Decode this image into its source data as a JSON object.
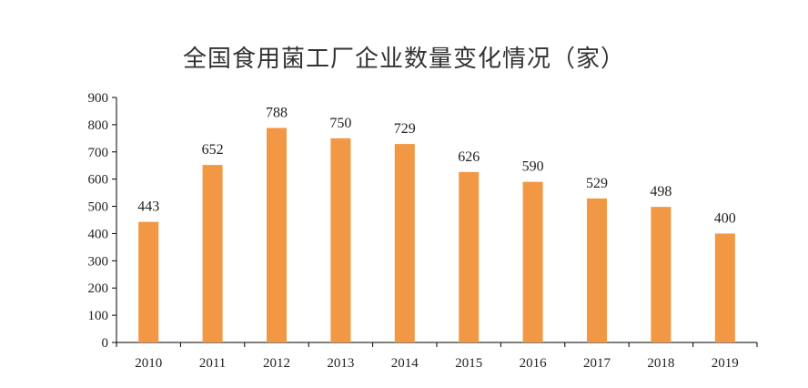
{
  "colors": {
    "bar": "#F29743",
    "axis": "#000000",
    "text": "#222222"
  },
  "chart_data": {
    "type": "bar",
    "title": "全国食用菌工厂企业数量变化情况（家）",
    "categories": [
      "2010",
      "2011",
      "2012",
      "2013",
      "2014",
      "2015",
      "2016",
      "2017",
      "2018",
      "2019"
    ],
    "values": [
      443,
      652,
      788,
      750,
      729,
      626,
      590,
      529,
      498,
      400
    ],
    "data_labels": [
      "443",
      "652",
      "788",
      "750",
      "729",
      "626",
      "590",
      "529",
      "498",
      "400"
    ],
    "xlabel": "",
    "ylabel": "",
    "ylim": [
      0,
      900
    ],
    "yticks": [
      "0",
      "100",
      "200",
      "300",
      "400",
      "500",
      "600",
      "700",
      "800",
      "900"
    ],
    "grid": false,
    "legend": "none"
  }
}
